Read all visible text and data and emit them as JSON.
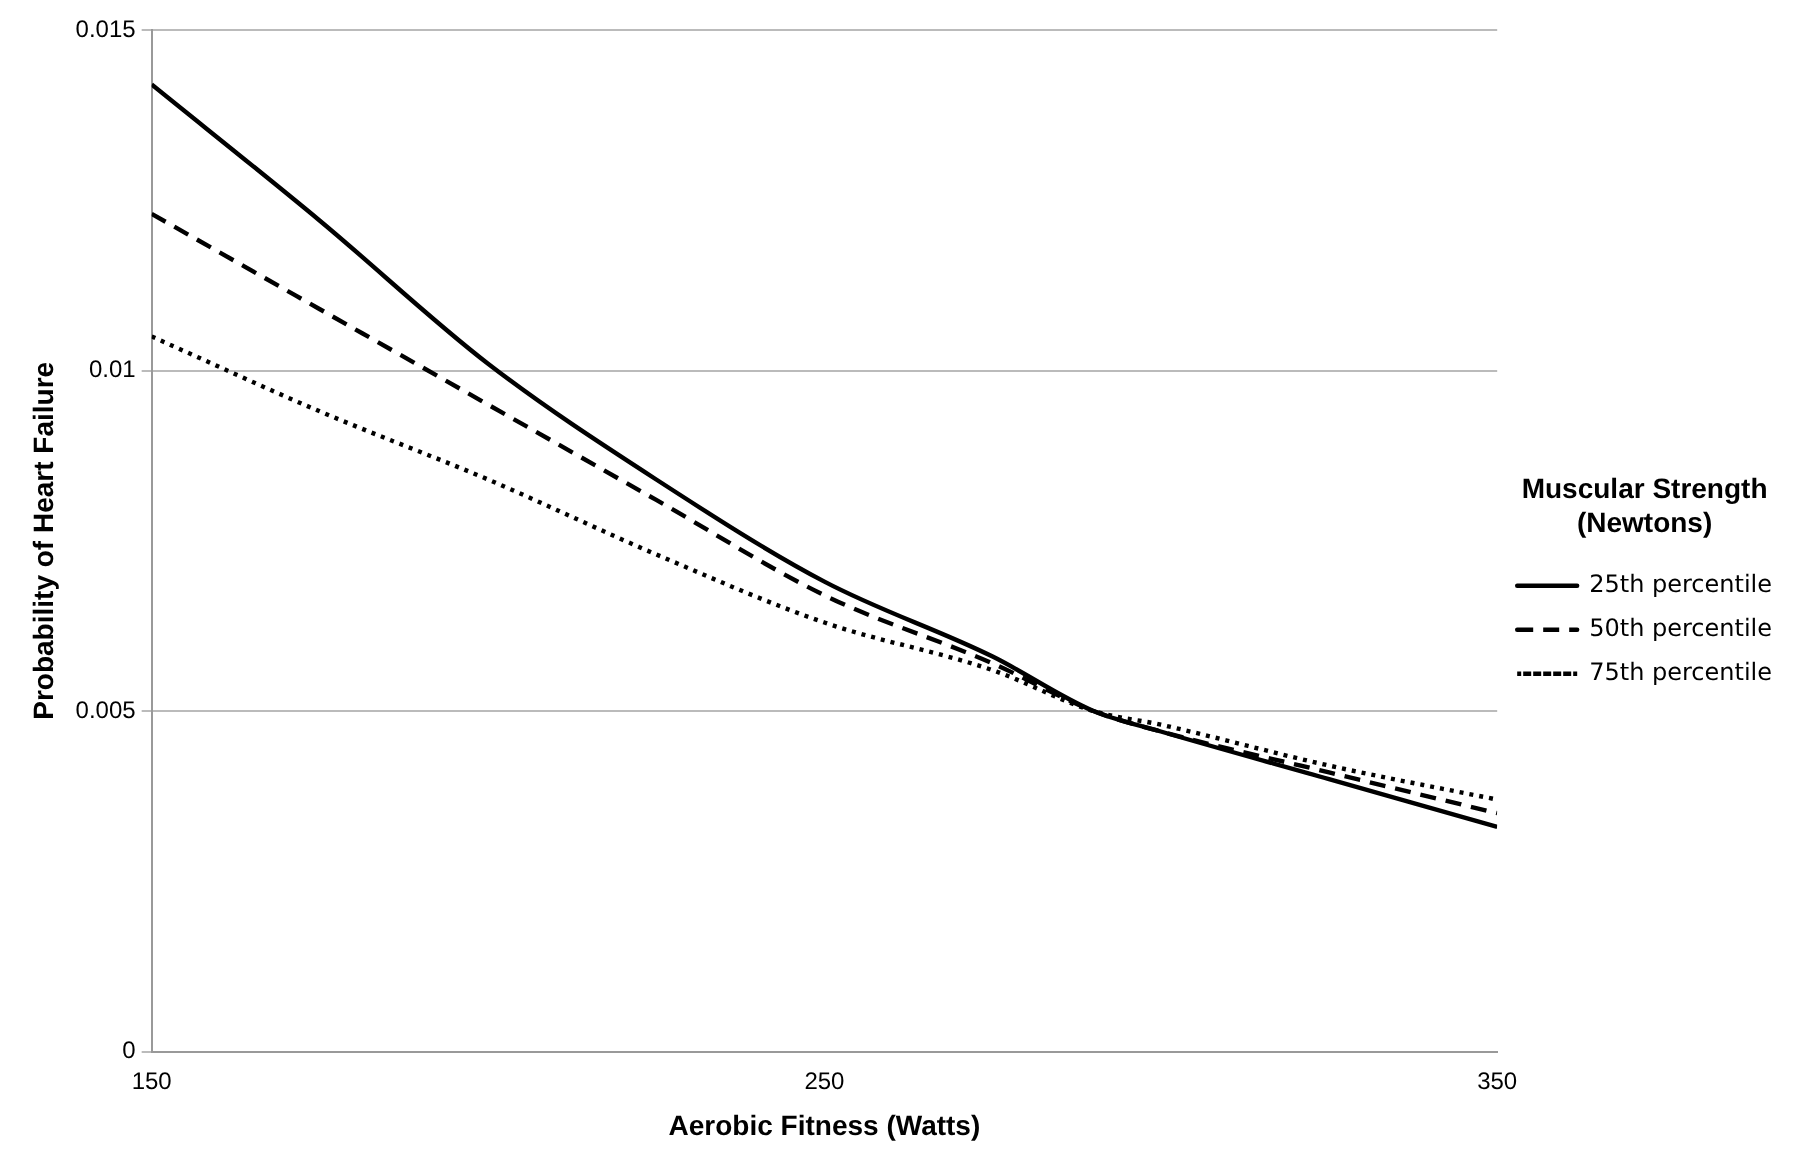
{
  "chart_data": {
    "type": "line",
    "xlabel": "Aerobic Fitness (Watts)",
    "ylabel": "Probability of Heart Failure",
    "legend_title": "Muscular Strength (Newtons)",
    "x": [
      150,
      175,
      200,
      225,
      250,
      275,
      290,
      300,
      325,
      350
    ],
    "series": [
      {
        "name": "25th percentile",
        "color": "#000000",
        "line_style": "solid",
        "values": [
          0.0142,
          0.0122,
          0.0101,
          0.0084,
          0.0069,
          0.0058,
          0.005,
          0.0047,
          0.004,
          0.0033
        ]
      },
      {
        "name": "50th percentile",
        "color": "#000000",
        "line_style": "dashed",
        "values": [
          0.0123,
          0.0109,
          0.0095,
          0.0081,
          0.0067,
          0.0057,
          0.005,
          0.0047,
          0.0041,
          0.0035
        ]
      },
      {
        "name": "75th percentile",
        "color": "#000000",
        "line_style": "dotted",
        "values": [
          0.0105,
          0.0094,
          0.0084,
          0.0073,
          0.0063,
          0.0056,
          0.005,
          0.0048,
          0.0042,
          0.0037
        ]
      }
    ],
    "xlim": [
      150,
      350
    ],
    "xticks": [
      150,
      250,
      350
    ],
    "ylim": [
      0,
      0.015
    ],
    "yticks": [
      0,
      0.005,
      0.01,
      0.015
    ],
    "grid": "y",
    "legend": "right",
    "marker": "none"
  }
}
